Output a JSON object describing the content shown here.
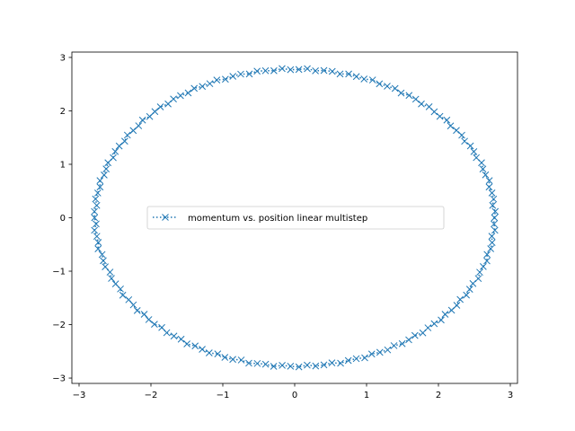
{
  "chart_data": {
    "type": "line",
    "title": "",
    "xlabel": "",
    "ylabel": "",
    "xlim": [
      -3.1,
      3.1
    ],
    "ylim": [
      -3.1,
      3.1
    ],
    "xticks": [
      -3,
      -2,
      -1,
      0,
      1,
      2,
      3
    ],
    "yticks": [
      -3,
      -2,
      -1,
      0,
      1,
      2,
      3
    ],
    "xtick_labels": [
      "−3",
      "−2",
      "−1",
      "0",
      "1",
      "2",
      "3"
    ],
    "ytick_labels": [
      "−3",
      "−2",
      "−1",
      "0",
      "1",
      "2",
      "3"
    ],
    "grid": false,
    "legend_position": "center",
    "series": [
      {
        "name": "momentum vs. position linear multistep",
        "color": "#1f77b4",
        "linestyle": "dotted",
        "marker": "x",
        "curve": "closed orbit",
        "x_amplitude": 2.78,
        "y_amplitude": 2.78,
        "num_points": 150
      }
    ]
  }
}
